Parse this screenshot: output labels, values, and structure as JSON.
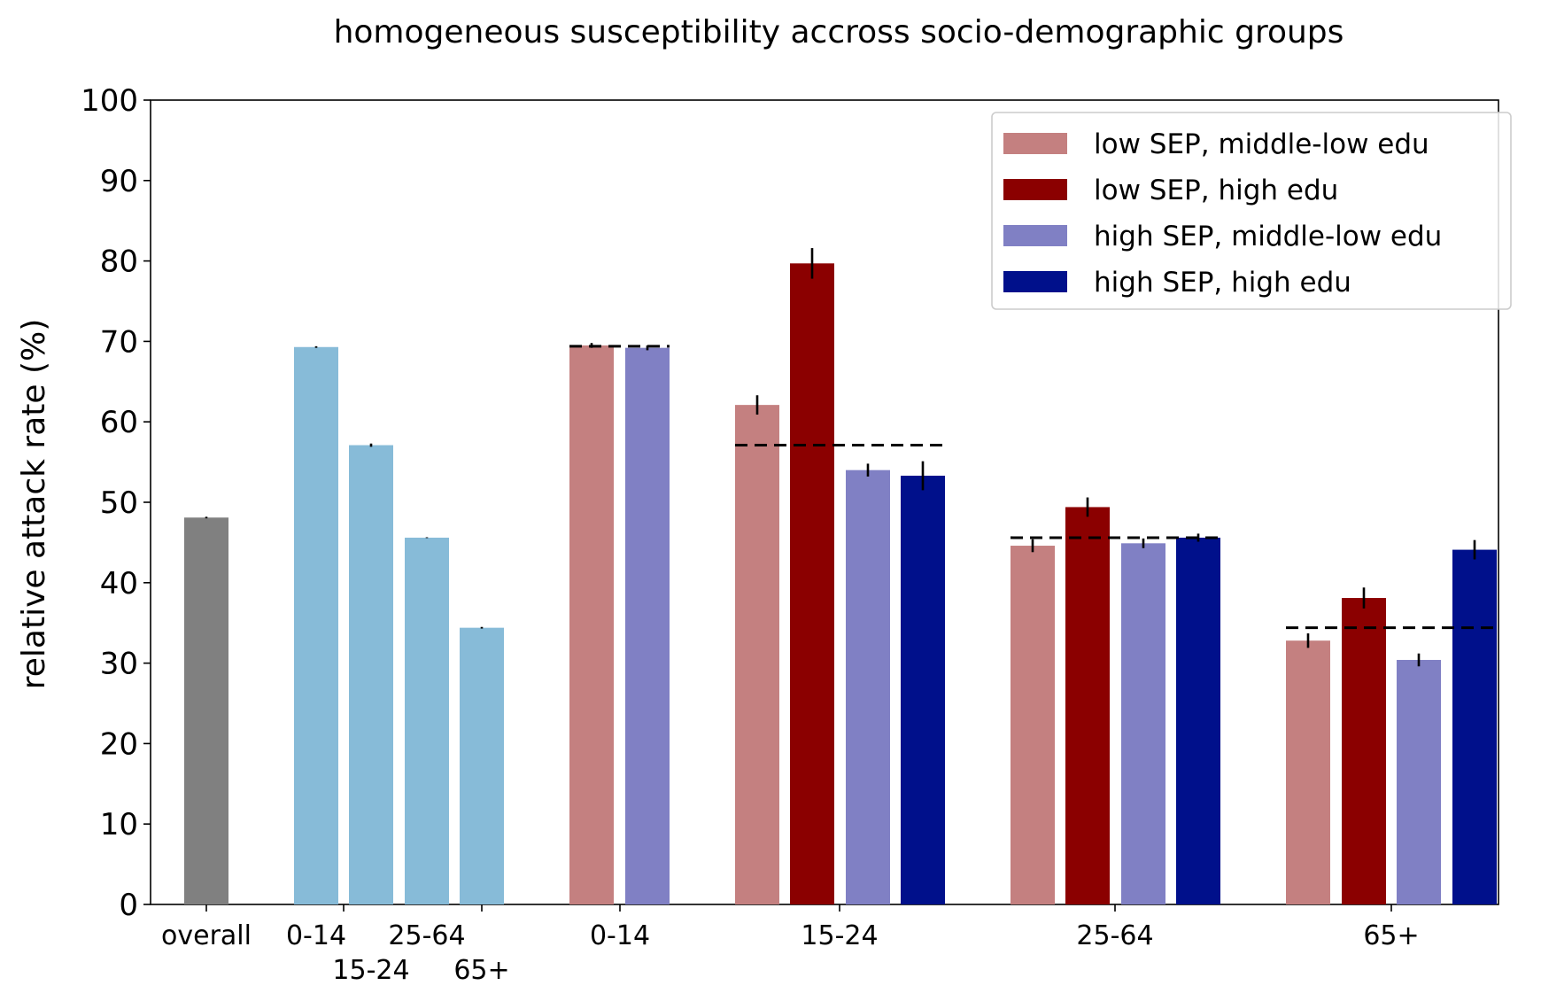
{
  "chart_data": {
    "type": "bar",
    "title": "homogeneous susceptibility accross socio-demographic groups",
    "ylabel": "relative attack rate (%)",
    "xlabel": "",
    "ylim": [
      0,
      100
    ],
    "yticks": [
      0,
      10,
      20,
      30,
      40,
      50,
      60,
      70,
      80,
      90,
      100
    ],
    "grid": false,
    "legend_position": "top-right",
    "series": [
      {
        "name": "low SEP, middle-low edu",
        "color": "#c48080"
      },
      {
        "name": "low SEP, high edu",
        "color": "#8b0000"
      },
      {
        "name": "high SEP, middle-low edu",
        "color": "#8080c4"
      },
      {
        "name": "high SEP, high edu",
        "color": "#00108b"
      }
    ],
    "groups": [
      {
        "label": "overall",
        "bars": [
          {
            "value": 48.1,
            "err": 0.1,
            "color": "#808080"
          }
        ]
      },
      {
        "label": "",
        "bars": [
          {
            "label": "0-14",
            "value": 69.3,
            "err": 0.1,
            "color": "#87bbd8"
          },
          {
            "label": "15-24",
            "value": 57.1,
            "err": 0.2,
            "color": "#87bbd8"
          },
          {
            "label": "25-64",
            "value": 45.6,
            "err": 0.05,
            "color": "#87bbd8"
          },
          {
            "label": "65+",
            "value": 34.4,
            "err": 0.1,
            "color": "#87bbd8"
          }
        ]
      },
      {
        "label": "0-14",
        "reference": 69.4,
        "bars": [
          {
            "series": 0,
            "value": 69.5,
            "err": 0.3
          },
          {
            "series": 2,
            "value": 69.2,
            "err": 0.3
          }
        ]
      },
      {
        "label": "15-24",
        "reference": 57.1,
        "bars": [
          {
            "series": 0,
            "value": 62.1,
            "err": 1.2
          },
          {
            "series": 1,
            "value": 79.7,
            "err": 1.9
          },
          {
            "series": 2,
            "value": 54.0,
            "err": 0.8
          },
          {
            "series": 3,
            "value": 53.3,
            "err": 1.8
          }
        ]
      },
      {
        "label": "25-64",
        "reference": 45.6,
        "bars": [
          {
            "series": 0,
            "value": 44.6,
            "err": 0.8
          },
          {
            "series": 1,
            "value": 49.4,
            "err": 1.2
          },
          {
            "series": 2,
            "value": 44.9,
            "err": 0.6
          },
          {
            "series": 3,
            "value": 45.6,
            "err": 0.5
          }
        ]
      },
      {
        "label": "65+",
        "reference": 34.4,
        "bars": [
          {
            "series": 0,
            "value": 32.8,
            "err": 0.9
          },
          {
            "series": 1,
            "value": 38.1,
            "err": 1.3
          },
          {
            "series": 2,
            "value": 30.4,
            "err": 0.8
          },
          {
            "series": 3,
            "value": 44.1,
            "err": 1.2
          }
        ]
      }
    ]
  }
}
